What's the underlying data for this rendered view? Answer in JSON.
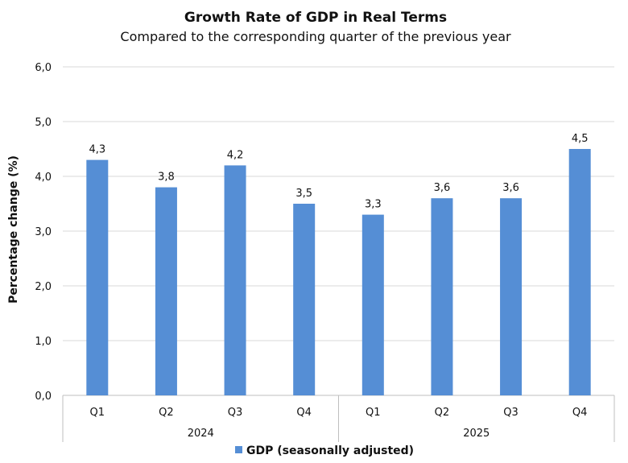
{
  "chart_data": {
    "type": "bar",
    "title": "Growth Rate of GDP in Real Terms",
    "subtitle": "Compared to the corresponding quarter of the previous year",
    "ylabel": "Percentage change (%)",
    "xlabel": "",
    "ylim": [
      0,
      6
    ],
    "yticks": [
      "0,0",
      "1,0",
      "2,0",
      "3,0",
      "4,0",
      "5,0",
      "6,0"
    ],
    "ytick_values": [
      0,
      1,
      2,
      3,
      4,
      5,
      6
    ],
    "categories": [
      "Q1",
      "Q2",
      "Q3",
      "Q4",
      "Q1",
      "Q2",
      "Q3",
      "Q4"
    ],
    "groups": [
      {
        "label": "2024",
        "count": 4
      },
      {
        "label": "2025",
        "count": 4
      }
    ],
    "series": [
      {
        "name": "GDP (seasonally adjusted)",
        "color": "#558ED5",
        "values": [
          4.3,
          3.8,
          4.2,
          3.5,
          3.3,
          3.6,
          3.6,
          4.5
        ],
        "labels": [
          "4,3",
          "3,8",
          "4,2",
          "3,5",
          "3,3",
          "3,6",
          "3,6",
          "4,5"
        ]
      }
    ],
    "grid": true,
    "legend": "bottom"
  }
}
